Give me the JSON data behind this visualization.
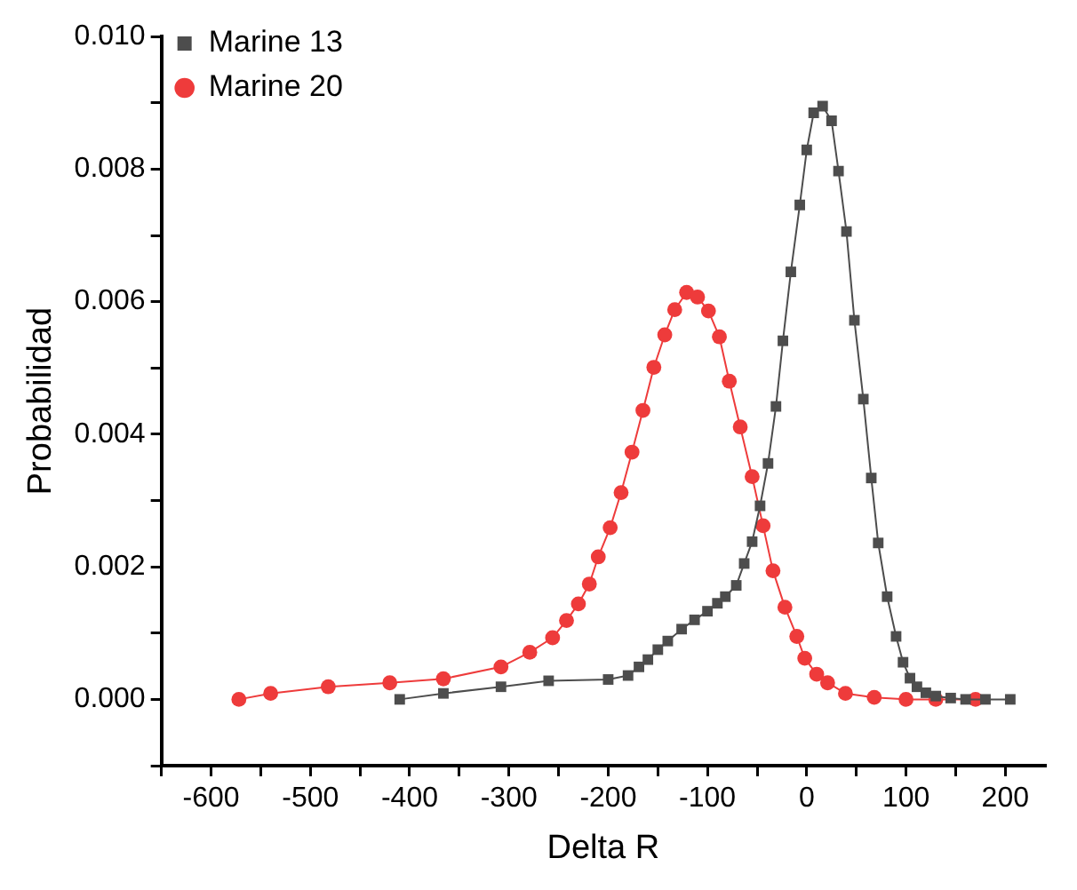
{
  "chart_data": {
    "type": "line",
    "xlabel": "Delta R",
    "ylabel": "Probabilidad",
    "xlim": [
      -650,
      240
    ],
    "ylim": [
      -0.001,
      0.01
    ],
    "xticks": [
      {
        "value": -650,
        "label": null
      },
      -600,
      {
        "value": -550,
        "label": null
      },
      -500,
      {
        "value": -450,
        "label": null
      },
      -400,
      {
        "value": -350,
        "label": null
      },
      -300,
      {
        "value": -250,
        "label": null
      },
      -200,
      {
        "value": -150,
        "label": null
      },
      -100,
      {
        "value": -50,
        "label": null
      },
      0,
      {
        "value": 50,
        "label": null
      },
      100,
      {
        "value": 150,
        "label": null
      },
      200
    ],
    "yticks": [
      {
        "value": -0.001,
        "label": null
      },
      {
        "value": 0,
        "label": "0.000"
      },
      {
        "value": 0.001,
        "label": null
      },
      {
        "value": 0.002,
        "label": "0.002"
      },
      {
        "value": 0.003,
        "label": null
      },
      {
        "value": 0.004,
        "label": "0.004"
      },
      {
        "value": 0.005,
        "label": null
      },
      {
        "value": 0.006,
        "label": "0.006"
      },
      {
        "value": 0.007,
        "label": null
      },
      {
        "value": 0.008,
        "label": "0.008"
      },
      {
        "value": 0.009,
        "label": null
      },
      {
        "value": 0.01,
        "label": "0.010"
      }
    ],
    "grid": false,
    "legend": "top left",
    "series": [
      {
        "name": "Marine 13",
        "color": "#4d4d4d",
        "marker": "square",
        "x": [
          -410,
          -366,
          -308,
          -260,
          -200,
          -180,
          -169,
          -160,
          -150,
          -140,
          -126,
          -113,
          -100,
          -90,
          -82,
          -71,
          -63,
          -55,
          -47,
          -39,
          -31,
          -24,
          -16,
          -7,
          0,
          7,
          16,
          25,
          32,
          40,
          48,
          57,
          65,
          72,
          81,
          90,
          97,
          104,
          111,
          120,
          130,
          145,
          160,
          180,
          205
        ],
        "values": [
          0,
          9e-05,
          0.00019,
          0.00028,
          0.0003,
          0.00036,
          0.00049,
          0.0006,
          0.00075,
          0.00088,
          0.00106,
          0.0012,
          0.00133,
          0.00145,
          0.00155,
          0.00172,
          0.00205,
          0.00238,
          0.00292,
          0.00356,
          0.00442,
          0.00541,
          0.00645,
          0.00746,
          0.00829,
          0.00885,
          0.00895,
          0.00873,
          0.00797,
          0.00706,
          0.00572,
          0.00453,
          0.00334,
          0.00236,
          0.00155,
          0.00095,
          0.00056,
          0.00032,
          0.00019,
          0.0001,
          5e-05,
          2e-05,
          0,
          0,
          0
        ]
      },
      {
        "name": "Marine 20",
        "color": "#ee3b3b",
        "marker": "circle",
        "x": [
          -572,
          -540,
          -482,
          -420,
          -366,
          -308,
          -279,
          -256,
          -242,
          -230,
          -219,
          -210,
          -198,
          -187,
          -176,
          -165,
          -154,
          -143,
          -133,
          -121,
          -110,
          -99,
          -88,
          -78,
          -67,
          -55,
          -44,
          -34,
          -22,
          -10,
          -2,
          10,
          21,
          39,
          68,
          100,
          130,
          170
        ],
        "values": [
          0,
          9e-05,
          0.00019,
          0.00025,
          0.00031,
          0.00049,
          0.00071,
          0.00093,
          0.00119,
          0.00144,
          0.00174,
          0.00215,
          0.00259,
          0.00312,
          0.00373,
          0.00436,
          0.00501,
          0.0055,
          0.00588,
          0.00614,
          0.00607,
          0.00586,
          0.00547,
          0.0048,
          0.00411,
          0.00336,
          0.00262,
          0.00194,
          0.00139,
          0.00095,
          0.00062,
          0.00038,
          0.00025,
          9e-05,
          3e-05,
          0,
          0,
          0
        ]
      }
    ]
  }
}
